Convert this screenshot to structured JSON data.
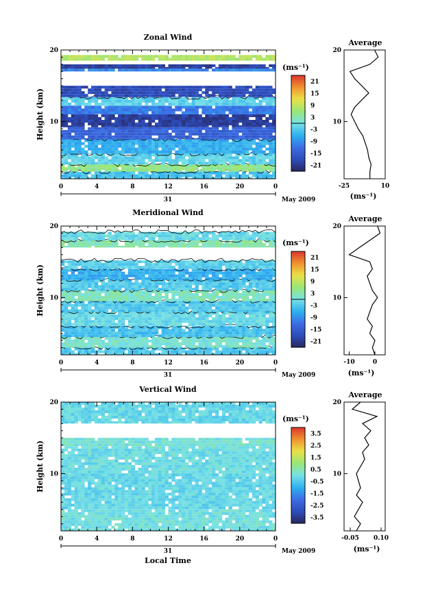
{
  "figure": {
    "xlabel": "Local Time",
    "date_label": "May 2009",
    "day_label": "31"
  },
  "chart_data": [
    {
      "type": "heatmap",
      "title": "Zonal Wind",
      "ylabel": "Height (km)",
      "xlabel": "Local Time",
      "x_ticks": [
        "0",
        "4",
        "8",
        "12",
        "16",
        "20",
        "0"
      ],
      "y_ticks": [
        "20",
        "10"
      ],
      "xlim": [
        0,
        24
      ],
      "ylim": [
        2,
        20
      ],
      "colorbar": {
        "unit": "(ms⁻¹)",
        "ticks": [
          "21",
          "15",
          "9",
          "3",
          "-3",
          "-9",
          "-15",
          "-21"
        ],
        "range": [
          -24,
          24
        ],
        "zero_line": true
      },
      "layers": [
        {
          "z0": 2.0,
          "z1": 3.0,
          "value": -4
        },
        {
          "z0": 3.0,
          "z1": 4.0,
          "value": 5
        },
        {
          "z0": 4.0,
          "z1": 5.5,
          "value": -2
        },
        {
          "z0": 5.5,
          "z1": 7.5,
          "value": -6
        },
        {
          "z0": 7.5,
          "z1": 9.2,
          "value": -14
        },
        {
          "z0": 9.2,
          "z1": 11.0,
          "value": -20
        },
        {
          "z0": 11.0,
          "z1": 12.2,
          "value": -11
        },
        {
          "z0": 12.2,
          "z1": 13.4,
          "value": -2
        },
        {
          "z0": 13.4,
          "z1": 15.0,
          "value": -18
        },
        {
          "z0": 17.0,
          "z1": 17.4,
          "value": -10
        },
        {
          "z0": 17.4,
          "z1": 18.0,
          "value": -20
        },
        {
          "z0": 18.5,
          "z1": 19.3,
          "value": 8
        }
      ],
      "profile": {
        "title": "Average",
        "xlabel": "(ms⁻¹)",
        "x_ticks": [
          "-25",
          "10"
        ],
        "xlim": [
          -25,
          10
        ],
        "height": [
          2,
          3,
          4,
          5,
          6,
          7,
          8,
          9,
          10,
          11,
          12,
          13,
          14,
          15,
          16,
          17,
          18,
          19,
          20
        ],
        "value": [
          -3,
          -3,
          -2,
          -4,
          -5,
          -7,
          -9,
          -13,
          -16,
          -19,
          -16,
          -10,
          -4,
          -10,
          -16,
          -20,
          -3,
          4,
          1
        ]
      }
    },
    {
      "type": "heatmap",
      "title": "Meridional Wind",
      "ylabel": "Height (km)",
      "xlabel": "Local Time",
      "x_ticks": [
        "0",
        "4",
        "8",
        "12",
        "16",
        "20",
        "0"
      ],
      "y_ticks": [
        "20",
        "10"
      ],
      "xlim": [
        0,
        24
      ],
      "ylim": [
        2,
        20
      ],
      "colorbar": {
        "unit": "(ms⁻¹)",
        "ticks": [
          "21",
          "15",
          "9",
          "3",
          "-3",
          "-9",
          "-15",
          "-21"
        ],
        "range": [
          -24,
          24
        ],
        "zero_line": true
      },
      "layers": [
        {
          "z0": 2.0,
          "z1": 3.0,
          "value": -3
        },
        {
          "z0": 3.0,
          "z1": 4.5,
          "value": 1
        },
        {
          "z0": 4.5,
          "z1": 6.0,
          "value": -4
        },
        {
          "z0": 6.0,
          "z1": 8.0,
          "value": -1
        },
        {
          "z0": 8.0,
          "z1": 9.5,
          "value": -3
        },
        {
          "z0": 9.5,
          "z1": 11.0,
          "value": 2
        },
        {
          "z0": 11.0,
          "z1": 12.5,
          "value": -3
        },
        {
          "z0": 12.5,
          "z1": 14.0,
          "value": -6
        },
        {
          "z0": 14.0,
          "z1": 15.2,
          "value": -2
        },
        {
          "z0": 17.0,
          "z1": 18.0,
          "value": 3
        },
        {
          "z0": 18.0,
          "z1": 19.2,
          "value": -1
        }
      ],
      "profile": {
        "title": "Average",
        "xlabel": "(ms⁻¹)",
        "x_ticks": [
          "-10",
          "0"
        ],
        "xlim": [
          -12,
          4
        ],
        "height": [
          2,
          3,
          4,
          5,
          6,
          7,
          8,
          9,
          10,
          11,
          12,
          13,
          14,
          15,
          16,
          17,
          18,
          19,
          20
        ],
        "value": [
          0,
          -1,
          0,
          -2,
          -1,
          -3,
          -2,
          -1,
          1,
          -1,
          -2,
          -3,
          -1,
          -2,
          -10,
          -6,
          -2,
          2,
          1
        ]
      }
    },
    {
      "type": "heatmap",
      "title": "Vertical Wind",
      "ylabel": "Height (km)",
      "xlabel": "Local Time",
      "x_ticks": [
        "0",
        "4",
        "8",
        "12",
        "16",
        "20",
        "0"
      ],
      "y_ticks": [
        "20",
        "10"
      ],
      "xlim": [
        0,
        24
      ],
      "ylim": [
        2,
        20
      ],
      "colorbar": {
        "unit": "(ms⁻¹)",
        "ticks": [
          "3.5",
          "2.5",
          "1.5",
          "0.5",
          "-0.5",
          "-1.5",
          "-2.5",
          "-3.5"
        ],
        "range": [
          -4,
          4
        ],
        "zero_line": false
      },
      "layers": [
        {
          "z0": 2.0,
          "z1": 5.0,
          "value": 0.0
        },
        {
          "z0": 5.0,
          "z1": 10.0,
          "value": -0.2
        },
        {
          "z0": 10.0,
          "z1": 13.5,
          "value": -0.1
        },
        {
          "z0": 13.5,
          "z1": 15.0,
          "value": 0.1
        },
        {
          "z0": 17.0,
          "z1": 20.0,
          "value": -0.2
        }
      ],
      "profile": {
        "title": "Average",
        "xlabel": "(ms⁻¹)",
        "x_ticks": [
          "-0.05",
          "0.10"
        ],
        "xlim": [
          -0.08,
          0.12
        ],
        "height": [
          2,
          3,
          4,
          5,
          6,
          7,
          8,
          9,
          10,
          11,
          12,
          13,
          14,
          15,
          16,
          17,
          18,
          19,
          20
        ],
        "value": [
          -0.02,
          0.0,
          -0.03,
          -0.01,
          0.01,
          -0.02,
          0.0,
          -0.01,
          -0.02,
          0.0,
          0.02,
          0.01,
          0.04,
          0.02,
          0.05,
          0.01,
          0.08,
          -0.04,
          0.0
        ]
      }
    }
  ]
}
